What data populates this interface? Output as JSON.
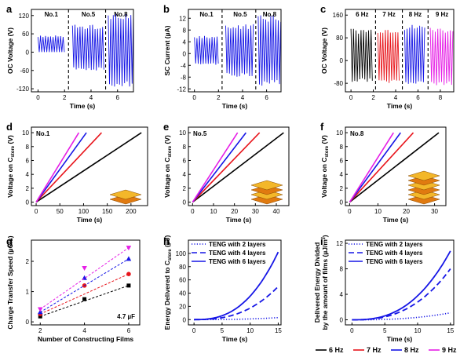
{
  "colors": {
    "black": "#000000",
    "red": "#e8141b",
    "blue": "#1616e6",
    "magenta": "#e61ee6",
    "grey_axis": "#000000"
  },
  "chart_data": [
    {
      "id": "a",
      "type": "line",
      "ylabel": "OC Voltage  (V)",
      "xlabel": "Time (s)",
      "xlim": [
        -0.5,
        7.2
      ],
      "ylim": [
        -130,
        140
      ],
      "xticks": [
        "0",
        "2",
        "4",
        "6"
      ],
      "xtick_values": [
        0,
        2,
        4,
        6
      ],
      "yticks": [
        "-120",
        "-60",
        "0",
        "60",
        "120"
      ],
      "ytick_values": [
        -120,
        -60,
        0,
        60,
        120
      ],
      "segments": [
        {
          "label": "No.1",
          "x_range": [
            0,
            2.0
          ],
          "min": 0,
          "max": 57,
          "color": "#1616e6"
        },
        {
          "label": "No.5",
          "x_range": [
            2.6,
            5.0
          ],
          "min": -60,
          "max": 92,
          "color": "#1616e6"
        },
        {
          "label": "No.8",
          "x_range": [
            5.3,
            7.2
          ],
          "min": -115,
          "max": 128,
          "color": "#1616e6"
        }
      ],
      "dividers": [
        2.3,
        5.1
      ]
    },
    {
      "id": "b",
      "type": "line",
      "ylabel": "SC Current  (µA)",
      "xlabel": "Time (s)",
      "xlim": [
        -0.5,
        7.2
      ],
      "ylim": [
        -13,
        15
      ],
      "xticks": [
        "0",
        "2",
        "4",
        "6"
      ],
      "xtick_values": [
        0,
        2,
        4,
        6
      ],
      "yticks": [
        "-12",
        "-8",
        "-4",
        "0",
        "4",
        "8",
        "12"
      ],
      "ytick_values": [
        -12,
        -8,
        -4,
        0,
        4,
        8,
        12
      ],
      "segments": [
        {
          "label": "No.1",
          "x_range": [
            0,
            2.0
          ],
          "min": -4,
          "max": 6,
          "color": "#1616e6"
        },
        {
          "label": "No.5",
          "x_range": [
            2.6,
            5.0
          ],
          "min": -8,
          "max": 10,
          "color": "#1616e6"
        },
        {
          "label": "No.8",
          "x_range": [
            5.3,
            7.2
          ],
          "min": -11,
          "max": 13,
          "color": "#1616e6"
        }
      ],
      "dividers": [
        2.3,
        5.1
      ]
    },
    {
      "id": "c",
      "type": "line",
      "ylabel": "OC Voltage  (V)",
      "xlabel": "Time (s)",
      "xlim": [
        -0.5,
        9.2
      ],
      "ylim": [
        -110,
        180
      ],
      "xticks": [
        "0",
        "2",
        "4",
        "6",
        "8"
      ],
      "xtick_values": [
        0,
        2,
        4,
        6,
        8
      ],
      "yticks": [
        "-80",
        "0",
        "80",
        "160"
      ],
      "ytick_values": [
        -80,
        0,
        80,
        160
      ],
      "segments": [
        {
          "label": "6 Hz",
          "x_range": [
            0,
            2.0
          ],
          "min": -75,
          "max": 115,
          "color": "#000000"
        },
        {
          "label": "7 Hz",
          "x_range": [
            2.4,
            4.4
          ],
          "min": -80,
          "max": 118,
          "color": "#e8141b"
        },
        {
          "label": "8 Hz",
          "x_range": [
            4.8,
            6.7
          ],
          "min": -85,
          "max": 128,
          "color": "#1616e6"
        },
        {
          "label": "9 Hz",
          "x_range": [
            7.1,
            9.2
          ],
          "min": -90,
          "max": 118,
          "color": "#e61ee6"
        }
      ],
      "dividers": [
        2.2,
        4.6,
        6.9
      ]
    },
    {
      "id": "d",
      "type": "line",
      "ylabel": "Voltage on C",
      "ylabel_sub": "store",
      "ylabel_unit": " (V)",
      "xlabel": "Time (s)",
      "tag": "No.1",
      "xlim": [
        -10,
        235
      ],
      "ylim": [
        -0.5,
        10.8
      ],
      "xticks": [
        "0",
        "50",
        "100",
        "150",
        "200"
      ],
      "xtick_values": [
        0,
        50,
        100,
        150,
        200
      ],
      "yticks": [
        "0",
        "2",
        "4",
        "6",
        "8",
        "10"
      ],
      "ytick_values": [
        0,
        2,
        4,
        6,
        8,
        10
      ],
      "series": [
        {
          "name": "6 Hz",
          "color": "#000000",
          "x": [
            0,
            222
          ],
          "y": [
            0,
            10
          ]
        },
        {
          "name": "7 Hz",
          "color": "#e8141b",
          "x": [
            0,
            138
          ],
          "y": [
            0,
            10
          ]
        },
        {
          "name": "8 Hz",
          "color": "#1616e6",
          "x": [
            0,
            106
          ],
          "y": [
            0,
            10
          ]
        },
        {
          "name": "9 Hz",
          "color": "#e61ee6",
          "x": [
            0,
            90
          ],
          "y": [
            0,
            10
          ]
        }
      ],
      "layers": 2
    },
    {
      "id": "e",
      "type": "line",
      "ylabel": "Voltage on C",
      "ylabel_sub": "store",
      "ylabel_unit": " (V)",
      "xlabel": "Time (s)",
      "tag": "No.5",
      "xlim": [
        -2,
        46
      ],
      "ylim": [
        -0.5,
        10.8
      ],
      "xticks": [
        "0",
        "10",
        "20",
        "30",
        "40"
      ],
      "xtick_values": [
        0,
        10,
        20,
        30,
        40
      ],
      "yticks": [
        "0",
        "2",
        "4",
        "6",
        "8",
        "10"
      ],
      "ytick_values": [
        0,
        2,
        4,
        6,
        8,
        10
      ],
      "series": [
        {
          "name": "6 Hz",
          "color": "#000000",
          "x": [
            0,
            43.5
          ],
          "y": [
            0,
            10
          ]
        },
        {
          "name": "7 Hz",
          "color": "#e8141b",
          "x": [
            0,
            32
          ],
          "y": [
            0,
            10
          ]
        },
        {
          "name": "8 Hz",
          "color": "#1616e6",
          "x": [
            0,
            25.5
          ],
          "y": [
            0,
            10
          ]
        },
        {
          "name": "9 Hz",
          "color": "#e61ee6",
          "x": [
            0,
            21.5
          ],
          "y": [
            0,
            10
          ]
        }
      ],
      "layers": 4
    },
    {
      "id": "f",
      "type": "line",
      "ylabel": "Voltage on C",
      "ylabel_sub": "store",
      "ylabel_unit": " (V)",
      "xlabel": "Time (s)",
      "tag": "No.8",
      "xlim": [
        -1.5,
        34
      ],
      "ylim": [
        -0.5,
        10.8
      ],
      "xticks": [
        "0",
        "10",
        "20",
        "30"
      ],
      "xtick_values": [
        0,
        10,
        20,
        30
      ],
      "yticks": [
        "0",
        "2",
        "4",
        "6",
        "8",
        "10"
      ],
      "ytick_values": [
        0,
        2,
        4,
        6,
        8,
        10
      ],
      "series": [
        {
          "name": "6 Hz",
          "color": "#000000",
          "x": [
            0,
            31.5
          ],
          "y": [
            0,
            10
          ]
        },
        {
          "name": "7 Hz",
          "color": "#e8141b",
          "x": [
            0,
            22.5
          ],
          "y": [
            0,
            10
          ]
        },
        {
          "name": "8 Hz",
          "color": "#1616e6",
          "x": [
            0,
            18
          ],
          "y": [
            0,
            10
          ]
        },
        {
          "name": "9 Hz",
          "color": "#e61ee6",
          "x": [
            0,
            15.5
          ],
          "y": [
            0,
            10
          ]
        }
      ],
      "layers": 6
    },
    {
      "id": "g",
      "type": "scatter",
      "ylabel": "Charge Transfer Speed  (µC/s)",
      "xlabel": "Number of Constructing Films",
      "annotation": "4.7 µF",
      "xlim": [
        1.6,
        6.5
      ],
      "ylim": [
        -0.1,
        2.7
      ],
      "xticks": [
        "2",
        "4",
        "6"
      ],
      "xtick_values": [
        2,
        4,
        6
      ],
      "yticks": [
        "0",
        "1",
        "2"
      ],
      "ytick_values": [
        0,
        1,
        2
      ],
      "series": [
        {
          "name": "6 Hz",
          "color": "#000000",
          "marker": "square",
          "x": [
            2,
            4,
            6
          ],
          "y": [
            0.18,
            0.75,
            1.2
          ]
        },
        {
          "name": "7 Hz",
          "color": "#e8141b",
          "marker": "circle",
          "x": [
            2,
            4,
            6
          ],
          "y": [
            0.26,
            1.2,
            1.58
          ]
        },
        {
          "name": "8 Hz",
          "color": "#1616e6",
          "marker": "triangle-up",
          "x": [
            2,
            4,
            6
          ],
          "y": [
            0.32,
            1.45,
            2.08
          ]
        },
        {
          "name": "9 Hz",
          "color": "#e61ee6",
          "marker": "triangle-down",
          "x": [
            2,
            4,
            6
          ],
          "y": [
            0.42,
            1.78,
            2.45
          ]
        }
      ]
    },
    {
      "id": "h",
      "type": "line",
      "ylabel": "Energy Delivered to C",
      "ylabel_sub": "store",
      "ylabel_unit": "  (µJ)",
      "xlabel": "Time (s)",
      "xlim": [
        -1,
        15.5
      ],
      "ylim": [
        -8,
        120
      ],
      "xticks": [
        "0",
        "5",
        "10",
        "15"
      ],
      "xtick_values": [
        0,
        5,
        10,
        15
      ],
      "yticks": [
        "0",
        "20",
        "40",
        "60",
        "80",
        "100"
      ],
      "ytick_values": [
        0,
        20,
        40,
        60,
        80,
        100
      ],
      "series": [
        {
          "name": "TENG with 2 layers",
          "color": "#1616e6",
          "dash": "dotted",
          "end_value": 3,
          "x_end": 15
        },
        {
          "name": "TENG with 4 layers",
          "color": "#1616e6",
          "dash": "dashed",
          "end_value": 50,
          "x_end": 15
        },
        {
          "name": "TENG with 6 layers",
          "color": "#1616e6",
          "dash": "solid",
          "end_value": 102,
          "x_end": 15
        }
      ]
    },
    {
      "id": "i",
      "type": "line",
      "ylabel": "Delivered Energy Divided",
      "ylabel2": "by the amount of films  (µJ/m²)",
      "xlabel": "Time (s)",
      "xlim": [
        -1,
        15.5
      ],
      "ylim": [
        -0.8,
        12.5
      ],
      "xticks": [
        "0",
        "5",
        "10",
        "15"
      ],
      "xtick_values": [
        0,
        5,
        10,
        15
      ],
      "yticks": [
        "0",
        "4",
        "8",
        "12"
      ],
      "ytick_values": [
        0,
        4,
        8,
        12
      ],
      "series": [
        {
          "name": "TENG with 2 layers",
          "color": "#1616e6",
          "dash": "dotted",
          "end_value": 1.1,
          "x_end": 15
        },
        {
          "name": "TENG with 4 layers",
          "color": "#1616e6",
          "dash": "dashed",
          "end_value": 8,
          "x_end": 15
        },
        {
          "name": "TENG with 6 layers",
          "color": "#1616e6",
          "dash": "solid",
          "end_value": 10.8,
          "x_end": 15
        }
      ]
    }
  ],
  "bottom_legend": [
    {
      "label": "6 Hz",
      "color": "#000000"
    },
    {
      "label": "7 Hz",
      "color": "#e8141b"
    },
    {
      "label": "8 Hz",
      "color": "#1616e6"
    },
    {
      "label": "9 Hz",
      "color": "#e61ee6"
    }
  ]
}
